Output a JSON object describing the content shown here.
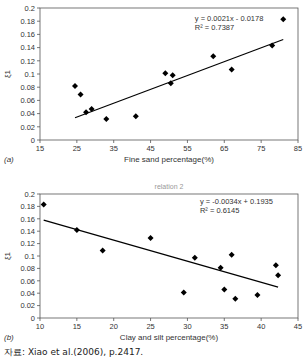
{
  "chart_data": [
    {
      "type": "scatter",
      "panel_label": "(a)",
      "x_label": "Fine sand percentage(%)",
      "y_label": "ξ1",
      "x": [
        24.5,
        26,
        27.5,
        29,
        33,
        41,
        49,
        50.5,
        51,
        62,
        67,
        78,
        81
      ],
      "values": [
        0.082,
        0.069,
        0.042,
        0.047,
        0.032,
        0.036,
        0.101,
        0.086,
        0.098,
        0.127,
        0.107,
        0.143,
        0.183
      ],
      "color": "#000000",
      "marker": "diamond",
      "trend": {
        "slope": 0.0021,
        "intercept": -0.0178,
        "label": "y = 0.0021x - 0.0178",
        "r2_label": "R² = 0.7387"
      },
      "xlim": [
        15,
        85
      ],
      "xticks": [
        15,
        25,
        35,
        45,
        55,
        65,
        75,
        85
      ],
      "ylim": [
        0,
        0.2
      ],
      "yticks": [
        0,
        0.02,
        0.04,
        0.06,
        0.08,
        0.1,
        0.12,
        0.14,
        0.16,
        0.18,
        0.2
      ]
    },
    {
      "type": "scatter",
      "title": "relation 2",
      "panel_label": "(b)",
      "x_label": "Clay and silt percentage(%)",
      "y_label": "ξ1",
      "x": [
        10.5,
        15,
        18.5,
        25,
        29.5,
        31,
        34.5,
        35,
        36,
        36.5,
        39.5,
        42,
        42.3
      ],
      "values": [
        0.183,
        0.142,
        0.109,
        0.129,
        0.041,
        0.097,
        0.081,
        0.046,
        0.102,
        0.031,
        0.037,
        0.085,
        0.069
      ],
      "color": "#000000",
      "marker": "diamond",
      "trend": {
        "slope": -0.0034,
        "intercept": 0.1935,
        "label": "y = -0.0034x + 0.1935",
        "r2_label": "R² = 0.6145"
      },
      "xlim": [
        10,
        45
      ],
      "xticks": [
        10,
        15,
        20,
        25,
        30,
        35,
        40,
        45
      ],
      "ylim": [
        0,
        0.2
      ],
      "yticks": [
        0,
        0.02,
        0.04,
        0.06,
        0.08,
        0.1,
        0.12,
        0.14,
        0.16,
        0.18,
        0.2
      ]
    }
  ],
  "source": "자료: Xiao et al.(2006), p.2417."
}
